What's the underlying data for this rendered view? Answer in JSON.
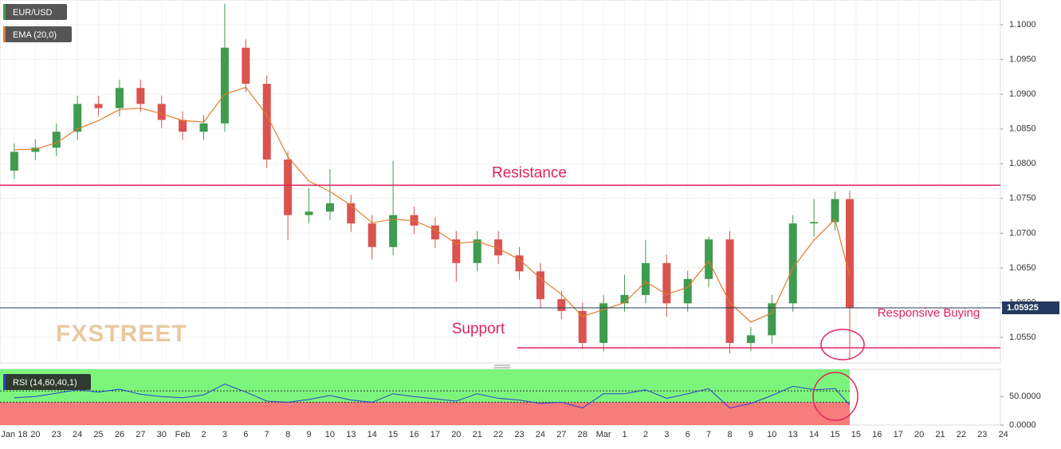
{
  "chart_data": [
    {
      "type": "candlestick",
      "title": "EUR/USD",
      "watermark": "FXSTREET",
      "series": [
        {
          "name": "EUR/USD",
          "up_color": "#3f9b4f",
          "down_color": "#d9534f",
          "x": [
            0,
            1,
            2,
            3,
            4,
            5,
            6,
            7,
            8,
            9,
            10,
            11,
            12,
            13,
            14,
            15,
            16,
            17,
            18,
            19,
            20,
            21,
            22,
            23,
            24,
            25,
            26,
            27,
            28,
            29,
            30,
            31,
            32,
            33,
            34,
            35,
            36,
            37,
            38,
            39,
            39.7
          ],
          "open": [
            1.079,
            1.0817,
            1.0823,
            1.0846,
            1.0886,
            1.088,
            1.0909,
            1.0886,
            1.0863,
            1.0846,
            1.0858,
            1.0967,
            1.0915,
            1.0806,
            1.0726,
            1.0731,
            1.0743,
            1.0714,
            1.068,
            1.0726,
            1.0711,
            1.0691,
            1.0657,
            1.0691,
            1.0668,
            1.0645,
            1.0605,
            1.0588,
            1.0542,
            1.0599,
            1.0611,
            1.0657,
            1.0599,
            1.0634,
            1.0691,
            1.0542,
            1.0553,
            1.0599,
            1.0714,
            1.0716,
            1.0749
          ],
          "high": [
            1.0829,
            1.0835,
            1.0858,
            1.0898,
            1.0898,
            1.0921,
            1.0921,
            1.0898,
            1.0875,
            1.087,
            1.103,
            1.0979,
            1.0927,
            1.0818,
            1.0765,
            1.0792,
            1.0755,
            1.0726,
            1.0804,
            1.0738,
            1.0723,
            1.0703,
            1.0703,
            1.0703,
            1.068,
            1.0657,
            1.0617,
            1.06,
            1.0611,
            1.064,
            1.069,
            1.0669,
            1.0646,
            1.0695,
            1.0703,
            1.0565,
            1.0611,
            1.0726,
            1.0749,
            1.076,
            1.0761
          ],
          "low": [
            1.0778,
            1.0805,
            1.0811,
            1.0834,
            1.0868,
            1.0868,
            1.0874,
            1.0851,
            1.0834,
            1.0834,
            1.0846,
            1.0903,
            1.0794,
            1.069,
            1.0714,
            1.0719,
            1.0702,
            1.0662,
            1.0668,
            1.0699,
            1.0679,
            1.063,
            1.0645,
            1.0656,
            1.0633,
            1.0593,
            1.0576,
            1.0533,
            1.053,
            1.0587,
            1.0599,
            1.058,
            1.0587,
            1.0622,
            1.0527,
            1.053,
            1.0541,
            1.0587,
            1.0695,
            1.0704,
            1.0518
          ],
          "close": [
            1.0817,
            1.0823,
            1.0846,
            1.0886,
            1.088,
            1.0909,
            1.0886,
            1.0863,
            1.0846,
            1.0858,
            1.0967,
            1.0915,
            1.0806,
            1.0726,
            1.0731,
            1.0743,
            1.0714,
            1.068,
            1.0726,
            1.0711,
            1.0691,
            1.0657,
            1.0691,
            1.0668,
            1.0645,
            1.0605,
            1.0588,
            1.0542,
            1.0599,
            1.0611,
            1.0657,
            1.0599,
            1.0634,
            1.0691,
            1.0542,
            1.0553,
            1.0599,
            1.0714,
            1.0716,
            1.0749,
            1.0593
          ]
        },
        {
          "name": "EMA (20,0)",
          "color": "#e07b2a",
          "x": [
            0,
            1,
            2,
            3,
            4,
            5,
            6,
            7,
            8,
            9,
            10,
            11,
            12,
            13,
            14,
            15,
            16,
            17,
            18,
            19,
            20,
            21,
            22,
            23,
            24,
            25,
            26,
            27,
            28,
            29,
            30,
            31,
            32,
            33,
            34,
            35,
            36,
            37,
            38,
            39,
            39.7
          ],
          "values": [
            1.082,
            1.0821,
            1.083,
            1.085,
            1.0862,
            1.0878,
            1.088,
            1.0872,
            1.0862,
            1.086,
            1.09,
            1.091,
            1.087,
            1.081,
            1.0775,
            1.076,
            1.074,
            1.0715,
            1.072,
            1.0718,
            1.0705,
            1.0685,
            1.0688,
            1.0678,
            1.0662,
            1.0635,
            1.0612,
            1.058,
            1.059,
            1.06,
            1.063,
            1.0612,
            1.0622,
            1.066,
            1.06,
            1.0572,
            1.0585,
            1.065,
            1.069,
            1.072,
            1.0638
          ]
        }
      ],
      "xlim": [
        -0.68,
        46.86
      ],
      "ylim": [
        1.05133,
        1.10356
      ],
      "yticks": [
        {
          "value": 1.055,
          "label": "1.0550"
        },
        {
          "value": 1.06,
          "label": "1.0600"
        },
        {
          "value": 1.065,
          "label": "1.0650"
        },
        {
          "value": 1.07,
          "label": "1.0700"
        },
        {
          "value": 1.075,
          "label": "1.0750"
        },
        {
          "value": 1.08,
          "label": "1.0800"
        },
        {
          "value": 1.085,
          "label": "1.0850"
        },
        {
          "value": 1.09,
          "label": "1.0900"
        },
        {
          "value": 1.095,
          "label": "1.0950"
        },
        {
          "value": 1.1,
          "label": "1.1000"
        }
      ],
      "current_price": {
        "value": 1.05925,
        "label": "1.05925"
      },
      "annotations": [
        {
          "text": "Resistance",
          "value": 1.0769,
          "xrange": [
            -0.68,
            46.86
          ]
        },
        {
          "text": "Support",
          "value": 1.0535,
          "xrange": [
            23.9,
            46.86
          ]
        },
        {
          "text": "Responsive Buying"
        }
      ]
    },
    {
      "type": "line",
      "title": "RSI (14,60,40,1)",
      "color": "#2b3fd1",
      "x": [
        0,
        1,
        2,
        3,
        4,
        5,
        6,
        7,
        8,
        9,
        10,
        11,
        12,
        13,
        14,
        15,
        16,
        17,
        18,
        19,
        20,
        21,
        22,
        23,
        24,
        25,
        26,
        27,
        28,
        29,
        30,
        31,
        32,
        33,
        34,
        35,
        36,
        37,
        38,
        39,
        39.7
      ],
      "values": [
        48,
        50,
        56,
        62,
        58,
        63,
        54,
        50,
        48,
        53,
        72,
        58,
        42,
        40,
        45,
        52,
        44,
        40,
        55,
        50,
        46,
        42,
        55,
        47,
        44,
        38,
        40,
        30,
        55,
        55,
        62,
        47,
        55,
        64,
        30,
        38,
        52,
        68,
        62,
        64,
        35
      ],
      "levels": [
        60,
        40
      ],
      "ylim": [
        0,
        98
      ],
      "yticks": [
        {
          "value": 50,
          "label": "50.0000"
        },
        {
          "value": 0,
          "label": "0.0000"
        }
      ],
      "xlim": [
        -0.68,
        46.86
      ],
      "categories": [
        "Jan 18",
        "20",
        "23",
        "24",
        "25",
        "26",
        "27",
        "30",
        "Feb",
        "2",
        "3",
        "6",
        "7",
        "8",
        "9",
        "10",
        "13",
        "14",
        "15",
        "16",
        "17",
        "20",
        "21",
        "22",
        "23",
        "24",
        "27",
        "28",
        "Mar",
        "1",
        "2",
        "3",
        "6",
        "7",
        "8",
        "9",
        "10",
        "13",
        "14",
        "15",
        "15",
        "16",
        "17",
        "20",
        "21",
        "22",
        "23",
        "24"
      ]
    }
  ]
}
